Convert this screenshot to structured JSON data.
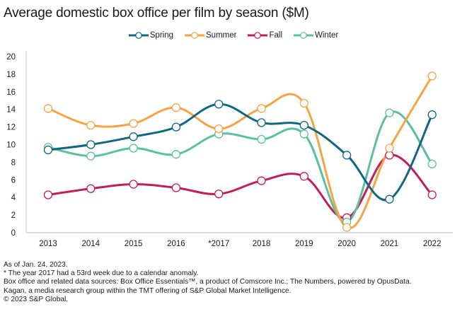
{
  "chart_data": {
    "type": "line",
    "title": "Average domestic box office per film by season ($M)",
    "xlabel": "",
    "ylabel": "",
    "categories": [
      "2013",
      "2014",
      "2015",
      "2016",
      "*2017",
      "2018",
      "2019",
      "2020",
      "2021",
      "2022"
    ],
    "ylim": [
      0,
      20
    ],
    "yticks": [
      "0",
      "2",
      "4",
      "6",
      "8",
      "10",
      "12",
      "14",
      "16",
      "18",
      "20"
    ],
    "grid": false,
    "legend_position": "top-center",
    "series": [
      {
        "name": "Spring",
        "color": "#10677f",
        "values": [
          9.4,
          10.0,
          10.9,
          12.0,
          14.6,
          12.5,
          12.2,
          8.8,
          3.8,
          13.4
        ]
      },
      {
        "name": "Summer",
        "color": "#f4a446",
        "values": [
          14.1,
          12.2,
          12.4,
          14.2,
          11.8,
          14.1,
          14.7,
          0.6,
          9.6,
          17.8
        ]
      },
      {
        "name": "Fall",
        "color": "#c21e56",
        "values": [
          4.3,
          5.0,
          5.5,
          5.1,
          4.4,
          5.9,
          6.4,
          1.7,
          8.8,
          4.3
        ]
      },
      {
        "name": "Winter",
        "color": "#5cbf9f",
        "values": [
          9.7,
          8.7,
          9.6,
          8.9,
          11.2,
          10.6,
          11.2,
          1.2,
          13.6,
          7.8
        ]
      }
    ]
  },
  "notes": [
    "As of Jan. 24, 2023.",
    "* The year 2017 had a 53rd week due to a calendar anomaly.",
    "Box office and related data sources: Box Office Essentials™, a product of Comscore Inc.; The Numbers, powered by OpusData.",
    "Kagan, a media research group within the TMT offering of S&P Global Market Intelligence.",
    "© 2023 S&P Global."
  ]
}
